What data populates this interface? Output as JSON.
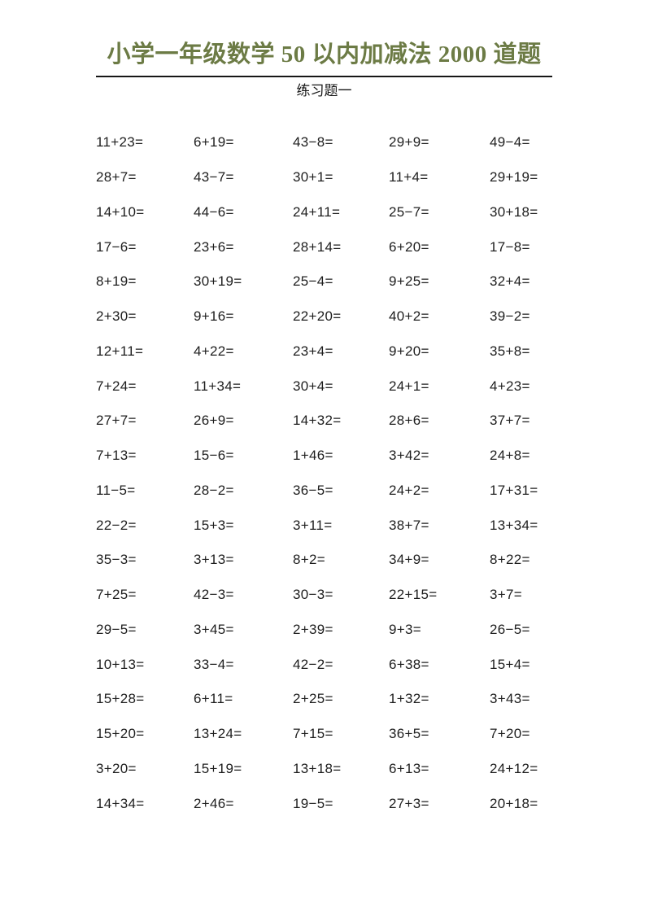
{
  "header": {
    "title": "小学一年级数学 50 以内加减法 2000 道题",
    "title_color": "#6c7b45",
    "underline_color": "#161616",
    "subtitle": "练习题一"
  },
  "worksheet": {
    "columns": 5,
    "total_problems": 100,
    "rows": [
      [
        "11+23=",
        "6+19=",
        "43−8=",
        "29+9=",
        "49−4="
      ],
      [
        "28+7=",
        "43−7=",
        "30+1=",
        "11+4=",
        "29+19="
      ],
      [
        "14+10=",
        "44−6=",
        "24+11=",
        "25−7=",
        "30+18="
      ],
      [
        "17−6=",
        "23+6=",
        "28+14=",
        "6+20=",
        "17−8="
      ],
      [
        "8+19=",
        "30+19=",
        "25−4=",
        "9+25=",
        "32+4="
      ],
      [
        "2+30=",
        "9+16=",
        "22+20=",
        "40+2=",
        "39−2="
      ],
      [
        "12+11=",
        "4+22=",
        "23+4=",
        "9+20=",
        "35+8="
      ],
      [
        "7+24=",
        "11+34=",
        "30+4=",
        "24+1=",
        "4+23="
      ],
      [
        "27+7=",
        "26+9=",
        "14+32=",
        "28+6=",
        "37+7="
      ],
      [
        "7+13=",
        "15−6=",
        "1+46=",
        "3+42=",
        "24+8="
      ],
      [
        "11−5=",
        "28−2=",
        "36−5=",
        "24+2=",
        "17+31="
      ],
      [
        "22−2=",
        "15+3=",
        "3+11=",
        "38+7=",
        "13+34="
      ],
      [
        "35−3=",
        "3+13=",
        "8+2=",
        "34+9=",
        "8+22="
      ],
      [
        "7+25=",
        "42−3=",
        "30−3=",
        "22+15=",
        "3+7="
      ],
      [
        "29−5=",
        "3+45=",
        "2+39=",
        "9+3=",
        "26−5="
      ],
      [
        "10+13=",
        "33−4=",
        "42−2=",
        "6+38=",
        "15+4="
      ],
      [
        "15+28=",
        "6+11=",
        "2+25=",
        "1+32=",
        "3+43="
      ],
      [
        "15+20=",
        "13+24=",
        "7+15=",
        "36+5=",
        "7+20="
      ],
      [
        "3+20=",
        "15+19=",
        "13+18=",
        "6+13=",
        "24+12="
      ],
      [
        "14+34=",
        "2+46=",
        "19−5=",
        "27+3=",
        "20+18="
      ]
    ]
  }
}
